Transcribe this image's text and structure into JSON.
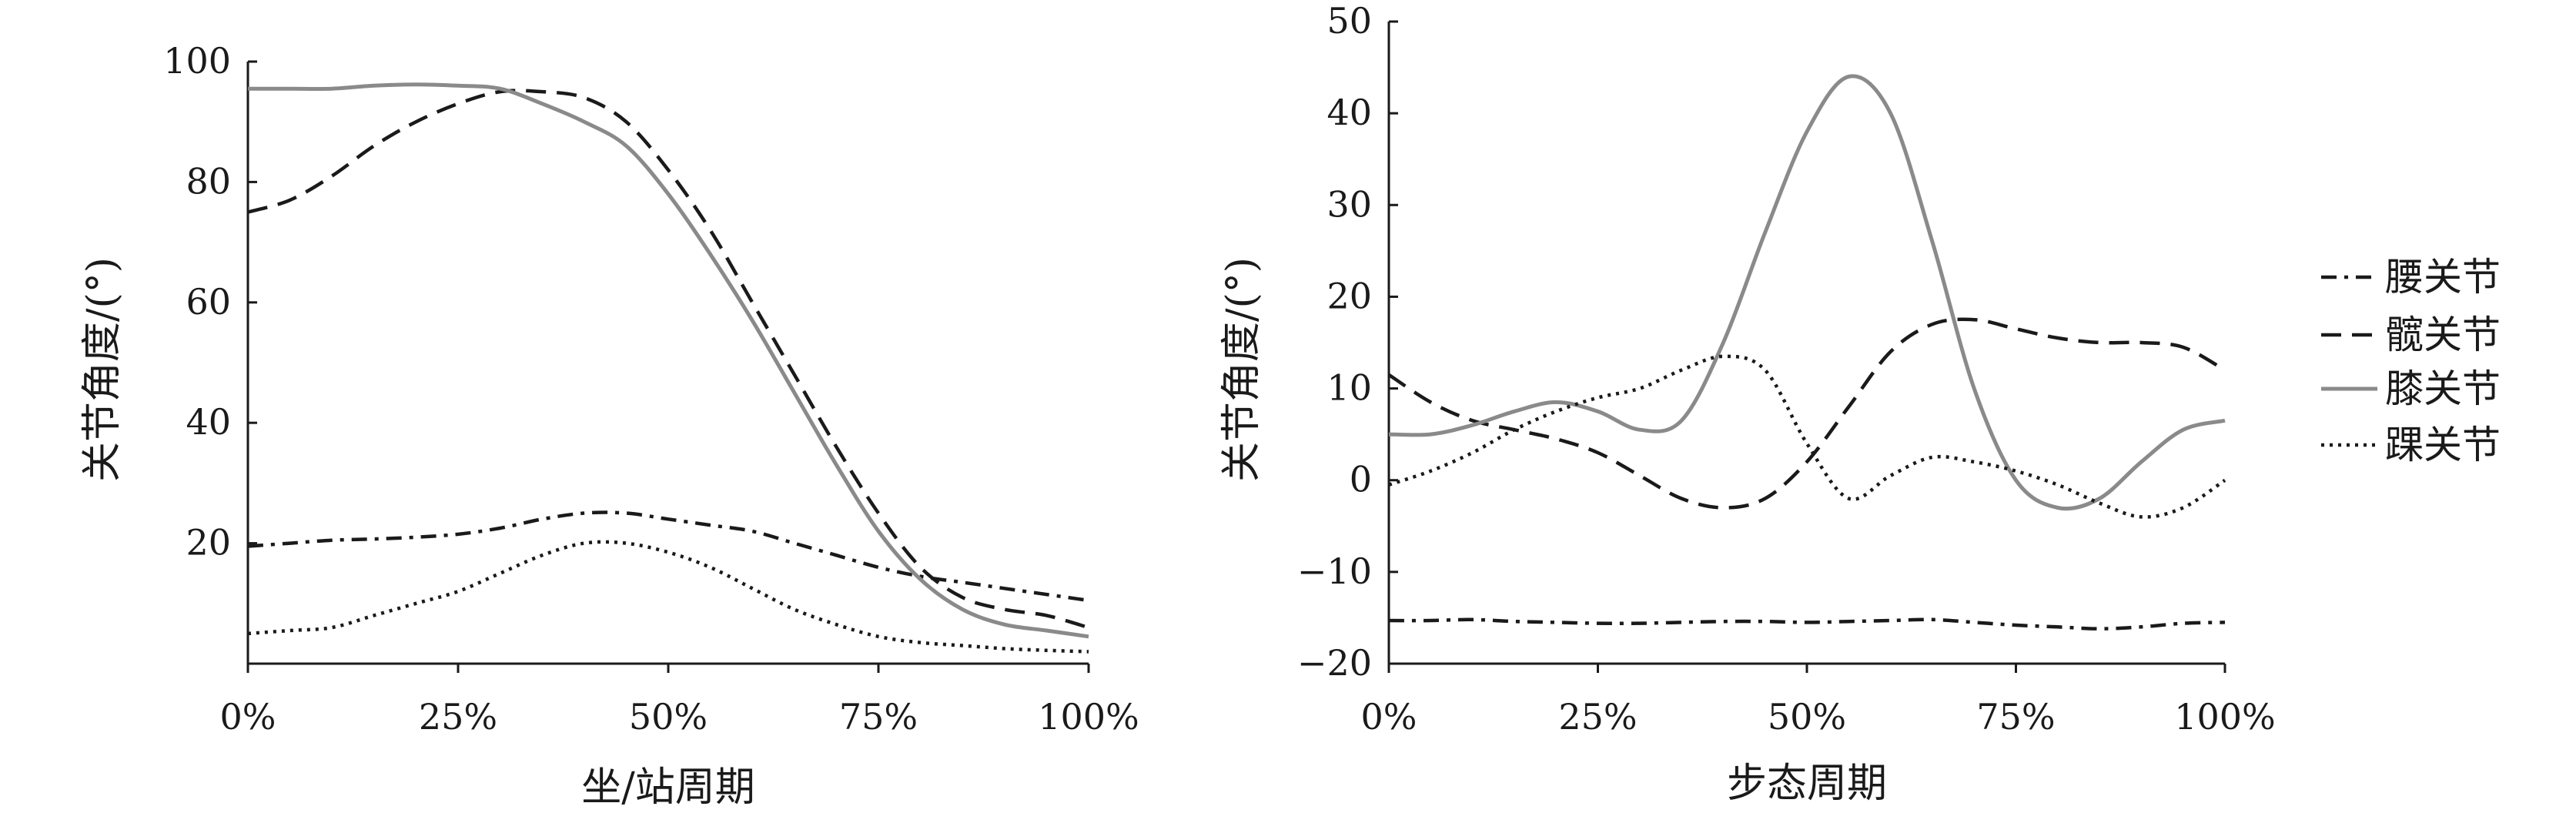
{
  "chart_data": [
    {
      "type": "line",
      "xlabel": "坐/站周期",
      "ylabel": "关节角度/(°)",
      "xlim": [
        0,
        100
      ],
      "ylim": [
        0,
        100
      ],
      "x_ticks": [
        0,
        25,
        50,
        75,
        100
      ],
      "x_tick_labels": [
        "0%",
        "25%",
        "50%",
        "75%",
        "100%"
      ],
      "y_ticks": [
        20,
        40,
        60,
        80,
        100
      ],
      "y_tick_labels": [
        "20",
        "40",
        "60",
        "80",
        "100"
      ],
      "x": [
        0,
        5,
        10,
        15,
        20,
        25,
        30,
        35,
        40,
        45,
        50,
        55,
        60,
        65,
        70,
        75,
        80,
        85,
        90,
        95,
        100
      ],
      "series": [
        {
          "name": "腰关节",
          "style": "dashdot",
          "color": "#1a1a1a",
          "values": [
            19.5,
            20,
            20.5,
            20.7,
            21,
            21.5,
            22.5,
            24,
            25,
            25,
            24,
            23,
            22,
            20,
            18,
            16,
            14.5,
            13.5,
            12.5,
            11.5,
            10.5
          ]
        },
        {
          "name": "髋关节",
          "style": "dashed",
          "color": "#1a1a1a",
          "values": [
            75,
            77,
            81,
            86,
            90,
            93,
            95,
            95,
            94,
            90,
            82,
            72,
            60,
            48,
            36,
            25,
            16,
            11,
            9,
            8,
            6
          ]
        },
        {
          "name": "膝关节",
          "style": "solid",
          "color": "#8a8a8a",
          "values": [
            95.5,
            95.5,
            95.5,
            96,
            96.2,
            96,
            95.5,
            93,
            90,
            86,
            78,
            68,
            57,
            45,
            33,
            22,
            14,
            9,
            6.5,
            5.5,
            4.5
          ]
        },
        {
          "name": "踝关节",
          "style": "dotted",
          "color": "#1a1a1a",
          "values": [
            5,
            5.5,
            6,
            8,
            10,
            12,
            15,
            18,
            20,
            20,
            18.5,
            16,
            12.5,
            9,
            6.5,
            4.5,
            3.5,
            3,
            2.5,
            2.2,
            2
          ]
        }
      ]
    },
    {
      "type": "line",
      "xlabel": "步态周期",
      "ylabel": "关节角度/(°)",
      "xlim": [
        0,
        100
      ],
      "ylim": [
        -20,
        50
      ],
      "x_ticks": [
        0,
        25,
        50,
        75,
        100
      ],
      "x_tick_labels": [
        "0%",
        "25%",
        "50%",
        "75%",
        "100%"
      ],
      "y_ticks": [
        -20,
        -10,
        0,
        10,
        20,
        30,
        40,
        50
      ],
      "y_tick_labels": [
        "−20",
        "−10",
        "0",
        "10",
        "20",
        "30",
        "40",
        "50"
      ],
      "x": [
        0,
        5,
        10,
        15,
        20,
        25,
        30,
        35,
        40,
        45,
        50,
        55,
        60,
        65,
        70,
        75,
        80,
        85,
        90,
        95,
        100
      ],
      "series": [
        {
          "name": "腰关节",
          "style": "dashdot",
          "color": "#1a1a1a",
          "values": [
            -15.3,
            -15.3,
            -15.2,
            -15.4,
            -15.5,
            -15.6,
            -15.6,
            -15.5,
            -15.4,
            -15.4,
            -15.5,
            -15.4,
            -15.3,
            -15.2,
            -15.5,
            -15.8,
            -16,
            -16.2,
            -16,
            -15.6,
            -15.5
          ]
        },
        {
          "name": "髋关节",
          "style": "dashed",
          "color": "#1a1a1a",
          "values": [
            11.5,
            8.5,
            6.5,
            5.5,
            4.5,
            3,
            0.5,
            -2,
            -3,
            -2,
            2,
            8,
            14,
            17,
            17.5,
            16.5,
            15.5,
            15,
            15,
            14.5,
            12
          ]
        },
        {
          "name": "膝关节",
          "style": "solid",
          "color": "#8a8a8a",
          "values": [
            5,
            5,
            6,
            7.5,
            8.5,
            7.5,
            5.5,
            6.5,
            15,
            27,
            38,
            44,
            40,
            26,
            10,
            0,
            -3,
            -2,
            2,
            5.5,
            6.5
          ]
        },
        {
          "name": "踝关节",
          "style": "dotted",
          "color": "#1a1a1a",
          "values": [
            -0.5,
            1,
            3,
            5.5,
            7.5,
            9,
            10,
            12,
            13.5,
            12,
            4,
            -2,
            0.5,
            2.5,
            2,
            1,
            -0.5,
            -2.5,
            -4,
            -3,
            0
          ]
        }
      ]
    }
  ],
  "legend": {
    "placement": "right",
    "items": [
      {
        "label": "腰关节",
        "style": "dashdot",
        "color": "#1a1a1a"
      },
      {
        "label": "髋关节",
        "style": "dashed",
        "color": "#1a1a1a"
      },
      {
        "label": "膝关节",
        "style": "solid",
        "color": "#8a8a8a"
      },
      {
        "label": "踝关节",
        "style": "dotted",
        "color": "#1a1a1a"
      }
    ]
  }
}
